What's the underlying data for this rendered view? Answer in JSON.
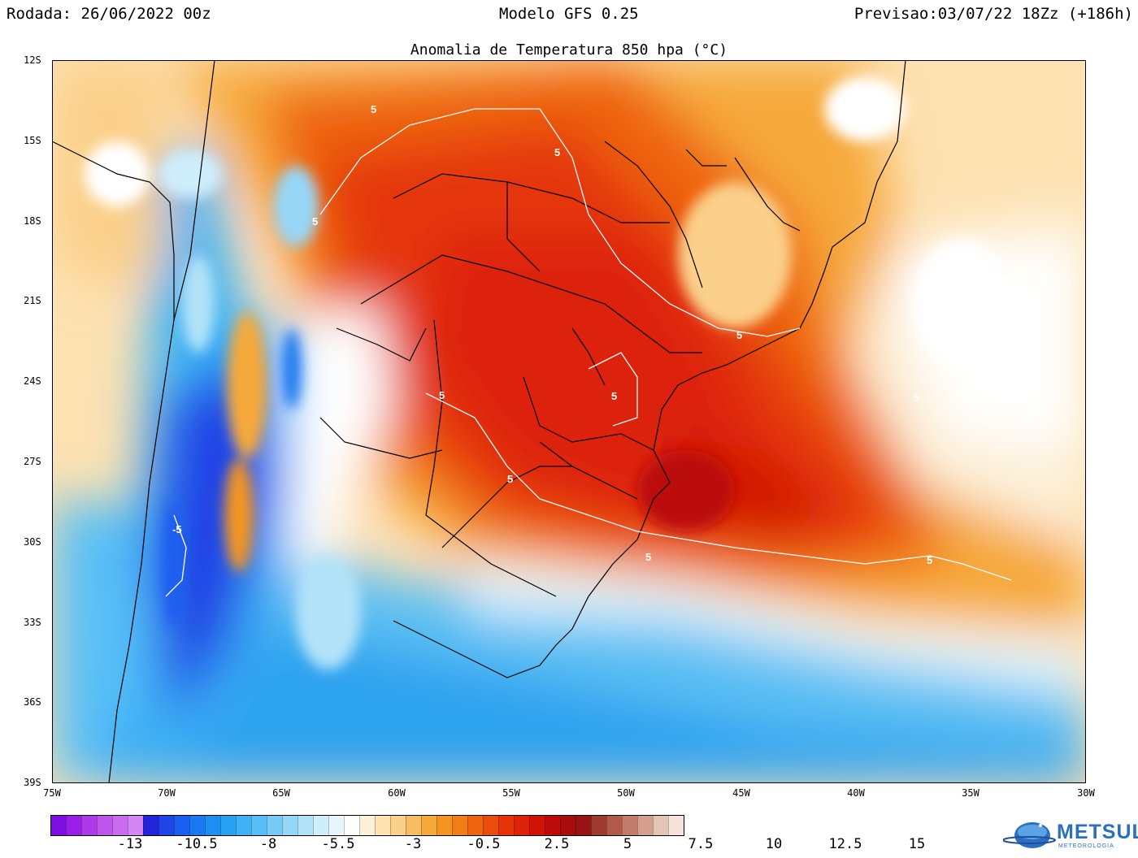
{
  "header": {
    "run": "Rodada: 26/06/2022 00z",
    "model": "Modelo GFS 0.25",
    "forecast": "Previsao:03/07/22 18Zz (+186h)"
  },
  "title": "Anomalia de Temperatura 850 hpa (°C)",
  "map": {
    "lat_labels": [
      "12S",
      "15S",
      "18S",
      "21S",
      "24S",
      "27S",
      "30S",
      "33S",
      "36S",
      "39S"
    ],
    "lon_labels": [
      "75W",
      "70W",
      "65W",
      "60W",
      "55W",
      "50W",
      "45W",
      "40W",
      "35W",
      "30W"
    ],
    "contour_labels": [
      "5",
      "5",
      "5",
      "5",
      "5",
      "5",
      "5",
      "5",
      "5",
      "5",
      "-5"
    ]
  },
  "colorbar": {
    "colors": [
      "#7e0fe0",
      "#9a1ee8",
      "#ad3ae6",
      "#bd55ea",
      "#c86bef",
      "#d486f2",
      "#2323d8",
      "#2045e6",
      "#1c5ff0",
      "#1a78f0",
      "#1d8ff0",
      "#27a2f2",
      "#3eb2f5",
      "#58bff6",
      "#78cbf6",
      "#96d7f7",
      "#b3e3f8",
      "#cfeefb",
      "#e6f6fc",
      "#ffffff",
      "#fdf0d8",
      "#fde2b2",
      "#fbd08a",
      "#f8bd62",
      "#f6a93b",
      "#f39420",
      "#f17d15",
      "#ee6410",
      "#ea4c0c",
      "#e43509",
      "#dc2208",
      "#d01306",
      "#bc0c0a",
      "#a80c0c",
      "#961414",
      "#a03a2e",
      "#b25a4a",
      "#c47c6a",
      "#d4a08e",
      "#e4c4b4",
      "#f4e4da"
    ],
    "labels": [
      "-13",
      "-10.5",
      "-8",
      "-5.5",
      "-3",
      "-0.5",
      "2.5",
      "5",
      "7.5",
      "10",
      "12.5",
      "15"
    ]
  },
  "logo": {
    "name": "METSUL",
    "subtitle": "METEOROLOGIA"
  }
}
